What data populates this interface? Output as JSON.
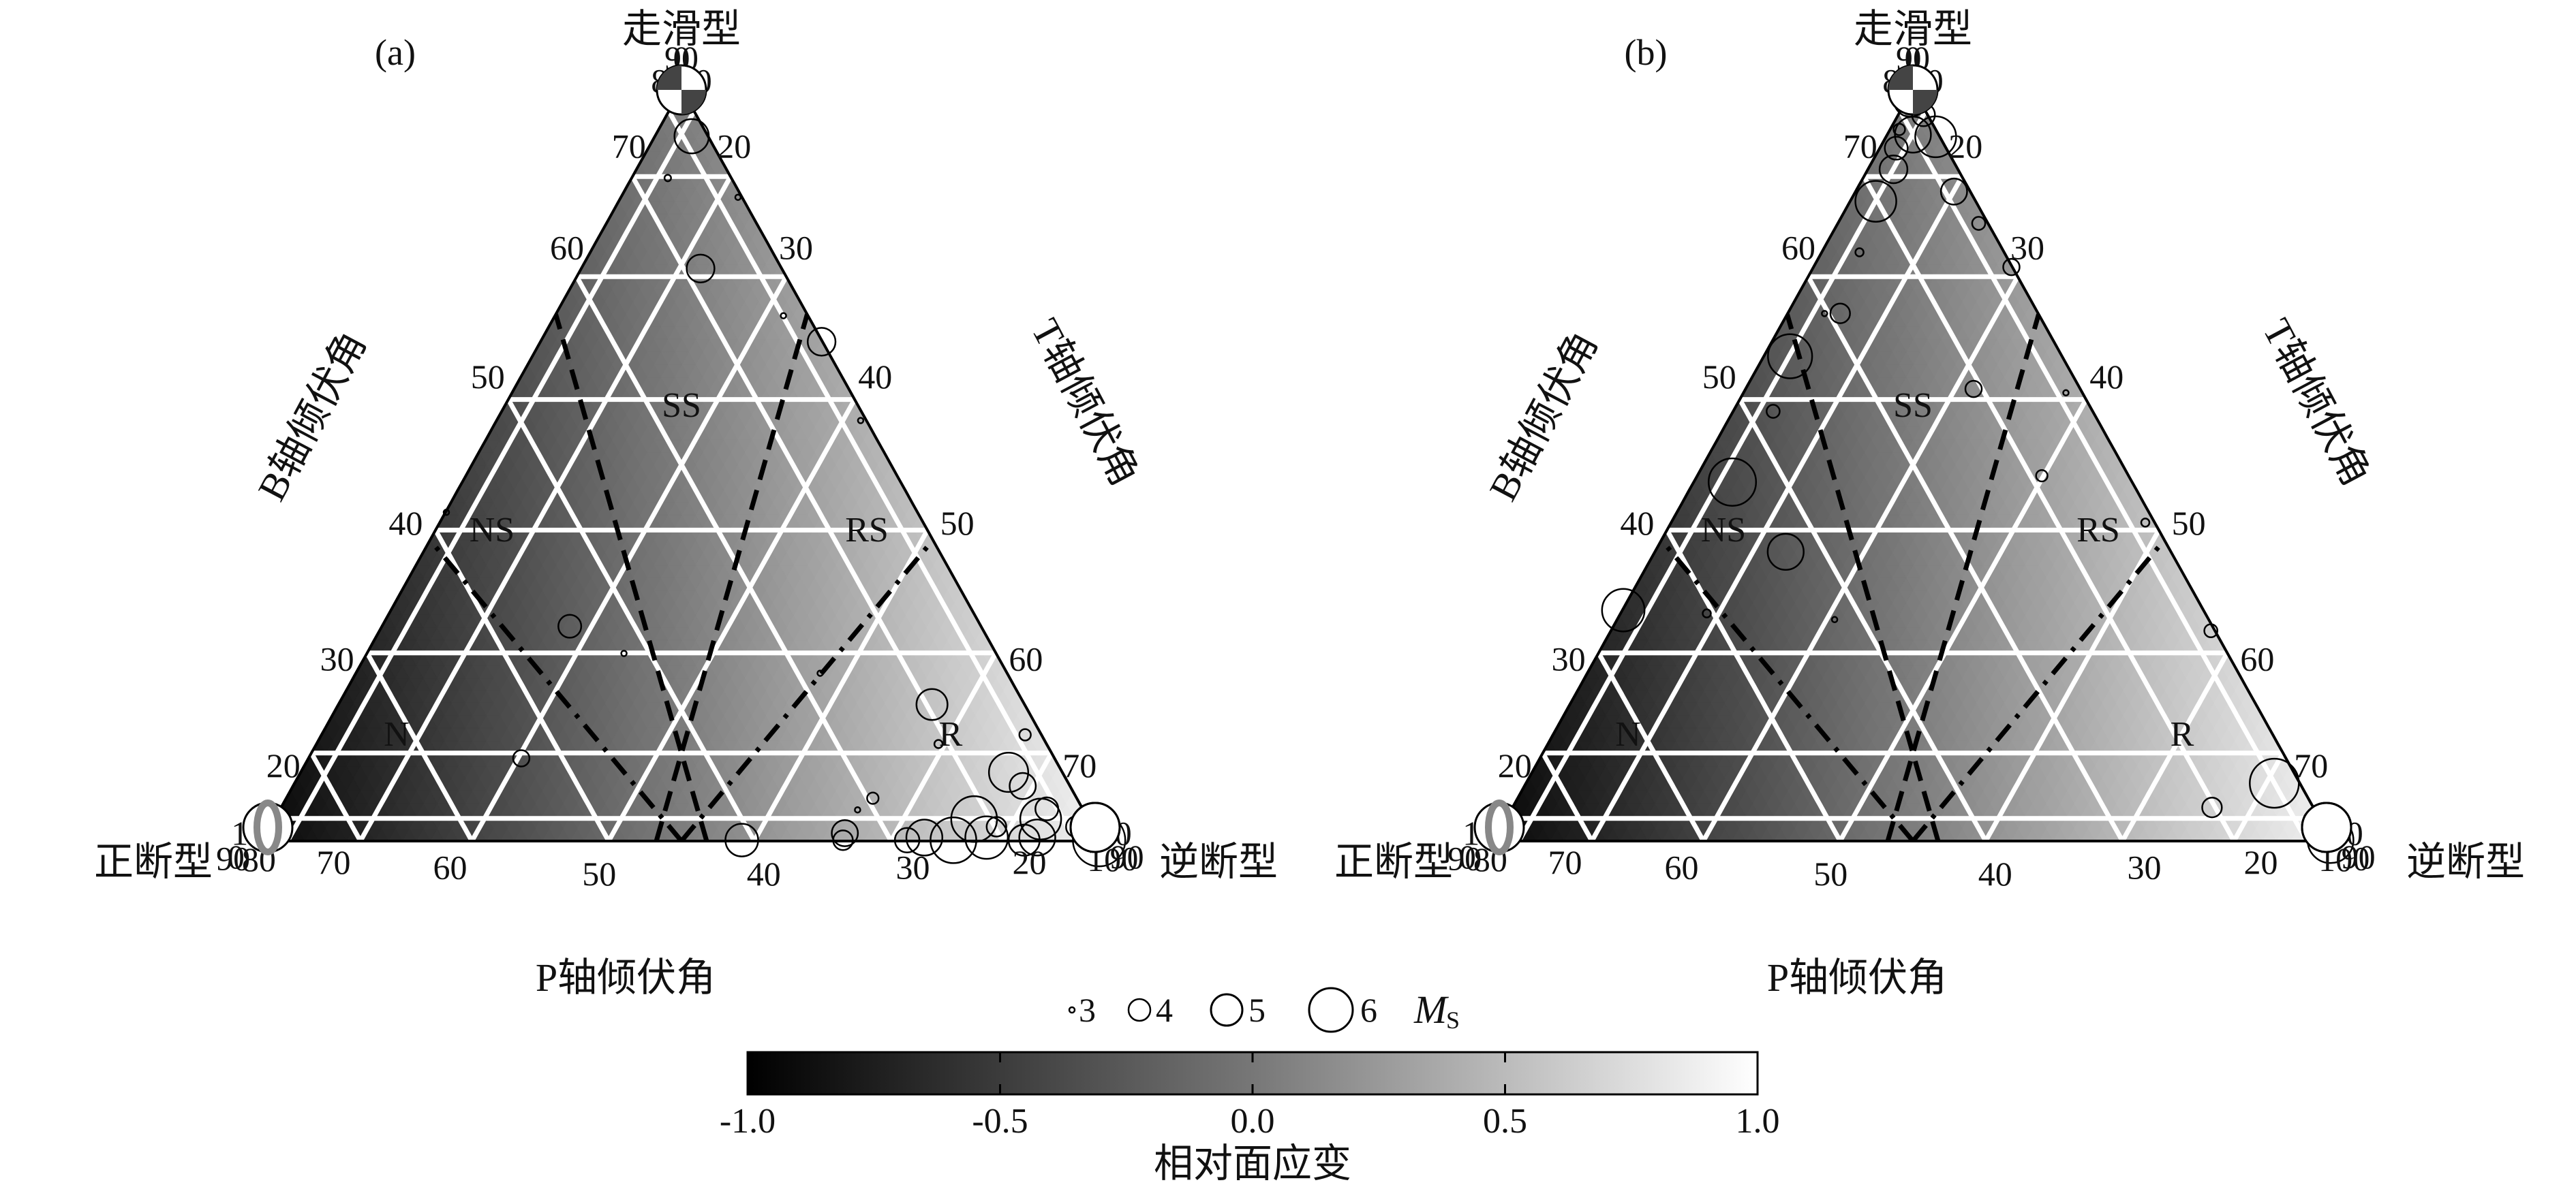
{
  "figure": {
    "panels": [
      {
        "tag": "(a)",
        "corner_labels": {
          "top": "走滑型",
          "left": "正断型",
          "right": "逆断型"
        },
        "axis_labels": {
          "b_axis": "B轴倾伏角",
          "t_axis": "T轴倾伏角",
          "p_axis": "P轴倾伏角"
        },
        "zone_labels": [
          "SS",
          "NS",
          "RS",
          "N",
          "R"
        ],
        "b_ticks": [
          "90",
          "80",
          "70",
          "60",
          "50",
          "40",
          "30",
          "20",
          "10",
          "0"
        ],
        "t_ticks": [
          "0",
          "10",
          "20",
          "30",
          "40",
          "50",
          "60",
          "70",
          "80",
          "90"
        ],
        "p_ticks": [
          "90",
          "80",
          "70",
          "60",
          "50",
          "40",
          "30",
          "20",
          "10",
          "0"
        ]
      },
      {
        "tag": "(b)",
        "corner_labels": {
          "top": "走滑型",
          "left": "正断型",
          "right": "逆断型"
        },
        "axis_labels": {
          "b_axis": "B轴倾伏角",
          "t_axis": "T轴倾伏角",
          "p_axis": "P轴倾伏角"
        },
        "zone_labels": [
          "SS",
          "NS",
          "RS",
          "N",
          "R"
        ],
        "b_ticks": [
          "90",
          "80",
          "70",
          "60",
          "50",
          "40",
          "30",
          "20",
          "10",
          "0"
        ],
        "t_ticks": [
          "0",
          "10",
          "20",
          "30",
          "40",
          "50",
          "60",
          "70",
          "80",
          "90"
        ],
        "p_ticks": [
          "90",
          "80",
          "70",
          "60",
          "50",
          "40",
          "30",
          "20",
          "10",
          "0"
        ]
      }
    ],
    "magnitude_legend": {
      "sizes": [
        "3",
        "4",
        "5",
        "6"
      ],
      "label": "M",
      "subscript": "S"
    },
    "colorbar": {
      "ticks": [
        "-1.0",
        "-0.5",
        "0.0",
        "0.5",
        "1.0"
      ],
      "label": "相对面应变",
      "range": [
        -1.0,
        1.0
      ],
      "colors": {
        "low": "#000000",
        "high": "#ffffff"
      }
    }
  },
  "chart_data": [
    {
      "type": "scatter",
      "title": "(a)",
      "axes": [
        "P轴倾伏角",
        "B轴倾伏角",
        "T轴倾伏角"
      ],
      "color_scale": "相对面应变",
      "color_range": [
        -1.0,
        1.0
      ],
      "points": [
        {
          "p": 2,
          "b": 86,
          "t": 2,
          "ms": 3.0
        },
        {
          "p": 8,
          "b": 74,
          "t": 12,
          "ms": 4.9
        },
        {
          "p": 16,
          "b": 70,
          "t": 12,
          "ms": 3.2
        },
        {
          "p": 4,
          "b": 68,
          "t": 22,
          "ms": 3.0
        },
        {
          "p": 18,
          "b": 60,
          "t": 22,
          "ms": 4.5
        },
        {
          "p": 10,
          "b": 58,
          "t": 32,
          "ms": 3.0
        },
        {
          "p": 2,
          "b": 60,
          "t": 38,
          "ms": 4.5
        },
        {
          "p": 5,
          "b": 52,
          "t": 44,
          "ms": 3.0
        },
        {
          "p": 45,
          "b": 32,
          "t": 36,
          "ms": 3.0
        },
        {
          "p": 30,
          "b": 30,
          "t": 52,
          "ms": 3.0
        },
        {
          "p": 20,
          "b": 26,
          "t": 60,
          "ms": 4.7
        },
        {
          "p": 22,
          "b": 22,
          "t": 64,
          "ms": 3.3
        },
        {
          "p": 15,
          "b": 18,
          "t": 70,
          "ms": 5.2
        },
        {
          "p": 14,
          "b": 16,
          "t": 72,
          "ms": 4.4
        },
        {
          "p": 8,
          "b": 22,
          "t": 66,
          "ms": 3.5
        },
        {
          "p": 12,
          "b": 12,
          "t": 74,
          "ms": 4.2
        },
        {
          "p": 30,
          "b": 14,
          "t": 58,
          "ms": 3.5
        },
        {
          "p": 32,
          "b": 12,
          "t": 58,
          "ms": 3.0
        },
        {
          "p": 22,
          "b": 10,
          "t": 68,
          "ms": 5.6
        },
        {
          "p": 20,
          "b": 8,
          "t": 70,
          "ms": 4.0
        },
        {
          "p": 14,
          "b": 10,
          "t": 76,
          "ms": 5.3
        },
        {
          "p": 8,
          "b": 8,
          "t": 82,
          "ms": 4.1
        },
        {
          "p": 6,
          "b": 6,
          "t": 86,
          "ms": 3.8
        },
        {
          "p": 4,
          "b": 4,
          "t": 88,
          "ms": 3.5
        },
        {
          "p": 16,
          "b": 4,
          "t": 78,
          "ms": 5.0
        },
        {
          "p": 22,
          "b": 4,
          "t": 72,
          "ms": 5.4
        },
        {
          "p": 28,
          "b": 4,
          "t": 66,
          "ms": 5.0
        },
        {
          "p": 34,
          "b": 6,
          "t": 58,
          "ms": 4.4
        },
        {
          "p": 36,
          "b": 2,
          "t": 62,
          "ms": 4.0
        },
        {
          "p": 30,
          "b": 2,
          "t": 66,
          "ms": 4.3
        },
        {
          "p": 26,
          "b": 2,
          "t": 72,
          "ms": 5.6
        },
        {
          "p": 18,
          "b": 2,
          "t": 78,
          "ms": 4.7
        },
        {
          "p": 40,
          "b": 2,
          "t": 48,
          "ms": 4.8
        },
        {
          "p": 2,
          "b": 2,
          "t": 88,
          "ms": 6.0
        },
        {
          "p": 48,
          "b": 18,
          "t": 28,
          "ms": 3.8
        },
        {
          "p": 52,
          "b": 44,
          "t": 2,
          "ms": 3.0
        },
        {
          "p": 44,
          "b": 32,
          "t": 28,
          "ms": 4.2
        }
      ]
    },
    {
      "type": "scatter",
      "title": "(b)",
      "axes": [
        "P轴倾伏角",
        "B轴倾伏角",
        "T轴倾伏角"
      ],
      "color_scale": "相对面应变",
      "color_range": [
        -1.0,
        1.0
      ],
      "points": [
        {
          "p": 2,
          "b": 86,
          "t": 2,
          "ms": 4.6
        },
        {
          "p": 6,
          "b": 82,
          "t": 4,
          "ms": 4.8
        },
        {
          "p": 4,
          "b": 80,
          "t": 10,
          "ms": 4.2
        },
        {
          "p": 12,
          "b": 76,
          "t": 6,
          "ms": 3.5
        },
        {
          "p": 10,
          "b": 74,
          "t": 10,
          "ms": 5.0
        },
        {
          "p": 4,
          "b": 74,
          "t": 14,
          "ms": 5.3
        },
        {
          "p": 14,
          "b": 72,
          "t": 8,
          "ms": 4.2
        },
        {
          "p": 16,
          "b": 70,
          "t": 10,
          "ms": 4.5
        },
        {
          "p": 8,
          "b": 68,
          "t": 20,
          "ms": 4.4
        },
        {
          "p": 20,
          "b": 66,
          "t": 10,
          "ms": 5.3
        },
        {
          "p": 6,
          "b": 64,
          "t": 24,
          "ms": 3.6
        },
        {
          "p": 2,
          "b": 64,
          "t": 30,
          "ms": 3.8
        },
        {
          "p": 24,
          "b": 60,
          "t": 12,
          "ms": 3.3
        },
        {
          "p": 30,
          "b": 56,
          "t": 12,
          "ms": 3.0
        },
        {
          "p": 28,
          "b": 54,
          "t": 14,
          "ms": 4.0
        },
        {
          "p": 34,
          "b": 52,
          "t": 10,
          "ms": 5.5
        },
        {
          "p": 36,
          "b": 46,
          "t": 12,
          "ms": 3.6
        },
        {
          "p": 42,
          "b": 42,
          "t": 12,
          "ms": 5.7
        },
        {
          "p": 40,
          "b": 36,
          "t": 22,
          "ms": 5.0
        },
        {
          "p": 48,
          "b": 32,
          "t": 18,
          "ms": 3.3
        },
        {
          "p": 38,
          "b": 30,
          "t": 28,
          "ms": 3.0
        },
        {
          "p": 20,
          "b": 48,
          "t": 30,
          "ms": 3.8
        },
        {
          "p": 18,
          "b": 42,
          "t": 38,
          "ms": 3.5
        },
        {
          "p": 8,
          "b": 50,
          "t": 38,
          "ms": 3.0
        },
        {
          "p": 6,
          "b": 40,
          "t": 48,
          "ms": 3.3
        },
        {
          "p": 4,
          "b": 32,
          "t": 58,
          "ms": 3.6
        },
        {
          "p": 10,
          "b": 16,
          "t": 70,
          "ms": 5.8
        },
        {
          "p": 20,
          "b": 12,
          "t": 64,
          "ms": 4.0
        },
        {
          "p": 6,
          "b": 10,
          "t": 80,
          "ms": 3.6
        },
        {
          "p": 4,
          "b": 6,
          "t": 84,
          "ms": 3.4
        },
        {
          "p": 2,
          "b": 2,
          "t": 88,
          "ms": 5.6
        },
        {
          "p": 3,
          "b": 4,
          "t": 87,
          "ms": 3.2
        },
        {
          "p": 86,
          "b": 4,
          "t": 2,
          "ms": 4.4
        },
        {
          "p": 62,
          "b": 36,
          "t": 2,
          "ms": 5.4
        },
        {
          "p": 84,
          "b": 2,
          "t": 6,
          "ms": 3.2
        }
      ]
    }
  ]
}
